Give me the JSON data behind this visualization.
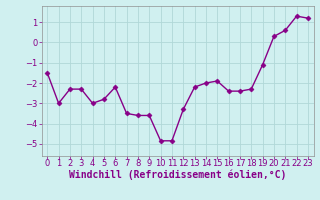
{
  "x": [
    0,
    1,
    2,
    3,
    4,
    5,
    6,
    7,
    8,
    9,
    10,
    11,
    12,
    13,
    14,
    15,
    16,
    17,
    18,
    19,
    20,
    21,
    22,
    23
  ],
  "y": [
    -1.5,
    -3.0,
    -2.3,
    -2.3,
    -3.0,
    -2.8,
    -2.2,
    -3.5,
    -3.6,
    -3.6,
    -4.85,
    -4.85,
    -3.3,
    -2.2,
    -2.0,
    -1.9,
    -2.4,
    -2.4,
    -2.3,
    -1.1,
    0.3,
    0.6,
    1.3,
    1.2
  ],
  "line_color": "#880088",
  "marker": "D",
  "marker_size": 2.5,
  "linewidth": 1.0,
  "bg_color": "#d0f0f0",
  "grid_color": "#b0d8d8",
  "tick_color": "#880088",
  "label_color": "#880088",
  "xlabel": "Windchill (Refroidissement éolien,°C)",
  "xlim": [
    -0.5,
    23.5
  ],
  "ylim": [
    -5.6,
    1.8
  ],
  "yticks": [
    1,
    0,
    -1,
    -2,
    -3,
    -4,
    -5
  ],
  "xticks": [
    0,
    1,
    2,
    3,
    4,
    5,
    6,
    7,
    8,
    9,
    10,
    11,
    12,
    13,
    14,
    15,
    16,
    17,
    18,
    19,
    20,
    21,
    22,
    23
  ],
  "axis_fontsize": 6,
  "tick_fontsize": 6,
  "xlabel_fontsize": 7
}
